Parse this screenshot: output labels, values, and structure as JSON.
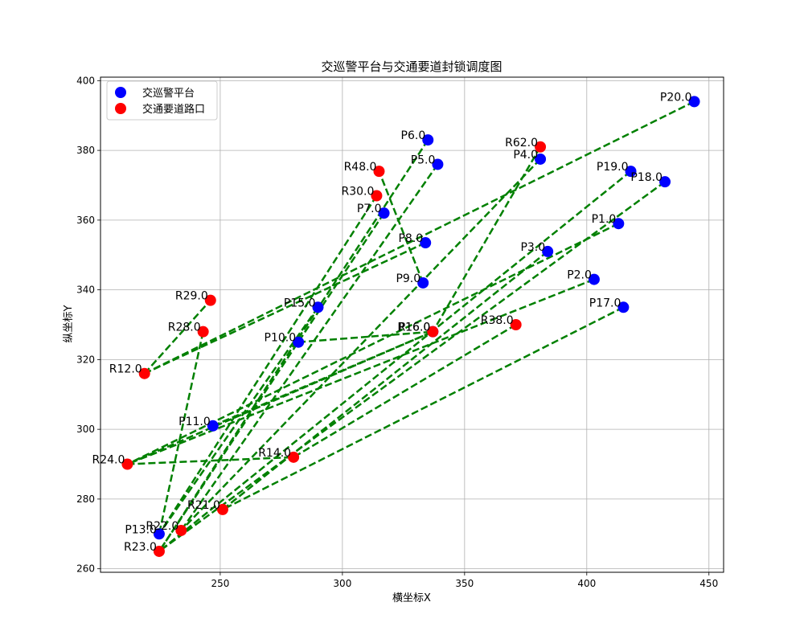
{
  "chart_data": {
    "type": "scatter",
    "title": "交巡警平台与交通要道封锁调度图",
    "xlabel": "横坐标X",
    "ylabel": "纵坐标Y",
    "xlim": [
      201,
      456
    ],
    "ylim": [
      259,
      401
    ],
    "xticks": [
      250,
      300,
      350,
      400,
      450
    ],
    "yticks": [
      260,
      280,
      300,
      320,
      340,
      360,
      380,
      400
    ],
    "grid": true,
    "legend_position": "top-left",
    "colors": {
      "platform": "#0000ff",
      "road": "#ff0000",
      "link": "#008000"
    },
    "legend": [
      {
        "name": "交巡警平台",
        "color": "#0000ff"
      },
      {
        "name": "交通要道路口",
        "color": "#ff0000"
      }
    ],
    "platforms": [
      {
        "label": "P1.0",
        "x": 413,
        "y": 359
      },
      {
        "label": "P2.0",
        "x": 403,
        "y": 343
      },
      {
        "label": "P3.0",
        "x": 384,
        "y": 351
      },
      {
        "label": "P4.0",
        "x": 381,
        "y": 377.5
      },
      {
        "label": "P5.0",
        "x": 339,
        "y": 376
      },
      {
        "label": "P6.0",
        "x": 335,
        "y": 383
      },
      {
        "label": "P7.0",
        "x": 317,
        "y": 362
      },
      {
        "label": "P8.0",
        "x": 334,
        "y": 353.5
      },
      {
        "label": "P9.0",
        "x": 333,
        "y": 342
      },
      {
        "label": "P10.0",
        "x": 282,
        "y": 325
      },
      {
        "label": "P11.0",
        "x": 247,
        "y": 301
      },
      {
        "label": "P13.0",
        "x": 225,
        "y": 270
      },
      {
        "label": "P15.0",
        "x": 290,
        "y": 335
      },
      {
        "label": "P16.0",
        "x": 337,
        "y": 328
      },
      {
        "label": "P17.0",
        "x": 415,
        "y": 335
      },
      {
        "label": "P18.0",
        "x": 432,
        "y": 371
      },
      {
        "label": "P19.0",
        "x": 418,
        "y": 374
      },
      {
        "label": "P20.0",
        "x": 444,
        "y": 394
      }
    ],
    "roads": [
      {
        "label": "R12.0",
        "x": 219,
        "y": 316
      },
      {
        "label": "R14.0",
        "x": 280,
        "y": 292
      },
      {
        "label": "R16.0",
        "x": 337,
        "y": 328
      },
      {
        "label": "R21.0",
        "x": 251,
        "y": 277
      },
      {
        "label": "R22.0",
        "x": 234,
        "y": 271
      },
      {
        "label": "R23.0",
        "x": 225,
        "y": 265
      },
      {
        "label": "R24.0",
        "x": 212,
        "y": 290
      },
      {
        "label": "R28.0",
        "x": 243,
        "y": 328
      },
      {
        "label": "R29.0",
        "x": 246,
        "y": 337
      },
      {
        "label": "R30.0",
        "x": 314,
        "y": 367
      },
      {
        "label": "R38.0",
        "x": 371,
        "y": 330
      },
      {
        "label": "R48.0",
        "x": 315,
        "y": 374
      },
      {
        "label": "R62.0",
        "x": 381,
        "y": 381
      }
    ],
    "links": [
      [
        444,
        394,
        219,
        316
      ],
      [
        219,
        316,
        246,
        337
      ],
      [
        243,
        328,
        225,
        270
      ],
      [
        432,
        371,
        225,
        265
      ],
      [
        418,
        374,
        225,
        265
      ],
      [
        413,
        359,
        212,
        290
      ],
      [
        403,
        343,
        212,
        290
      ],
      [
        384,
        351,
        251,
        277
      ],
      [
        381,
        377.5,
        234,
        271
      ],
      [
        381,
        381,
        337,
        328
      ],
      [
        339,
        376,
        234,
        271
      ],
      [
        335,
        383,
        225,
        265
      ],
      [
        317,
        362,
        225,
        265
      ],
      [
        334,
        353.5,
        219,
        316
      ],
      [
        333,
        342,
        315,
        374
      ],
      [
        282,
        325,
        337,
        328
      ],
      [
        247,
        301,
        337,
        328
      ],
      [
        290,
        335,
        225,
        270
      ],
      [
        314,
        367,
        225,
        270
      ],
      [
        337,
        328,
        212,
        290
      ],
      [
        371,
        330,
        280,
        292
      ],
      [
        212,
        290,
        280,
        292
      ],
      [
        415,
        335,
        251,
        277
      ]
    ]
  }
}
